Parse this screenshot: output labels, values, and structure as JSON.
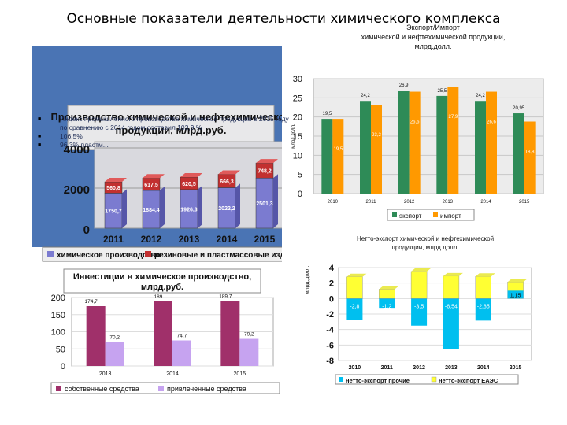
{
  "page_title": "Основные показатели деятельности  химического комплекса",
  "bullets": [
    {
      "text": "Индекс промышленного производства химической продукции в 2015 году по сравнению с 2014 годом    составил 103,9 %"
    },
    {
      "text": "106,5%"
    },
    {
      "text": "96,3% пластм..."
    }
  ],
  "colors": {
    "panel_blue": "#4a74b4",
    "green": "#2e8b57",
    "orange": "#ff9900",
    "cyan": "#00bfef",
    "yellow": "#ffff33",
    "maroon": "#a0306a",
    "lavender": "#c6a3f0",
    "purple_bar": "#7b7bd0",
    "red_bar": "#c23030"
  },
  "chart_data": [
    {
      "id": "production",
      "type": "bar",
      "title": "Производство химической и нефтехимической продукции, млрд.руб.",
      "categories": [
        "2011",
        "2012",
        "2013",
        "2014",
        "2015"
      ],
      "series": [
        {
          "name": "химическое производство",
          "values": [
            1750.7,
            1884.4,
            1926.3,
            2022.2,
            2501.3
          ]
        },
        {
          "name": "резиновые и пластмассовые изделия",
          "values": [
            560.8,
            617.5,
            620.5,
            666.3,
            748.2
          ]
        }
      ],
      "y_ticks": [
        "0",
        "2000",
        "4000"
      ],
      "ylim": [
        0,
        4000
      ],
      "stacked": true
    },
    {
      "id": "export_import",
      "type": "bar",
      "title": "Экспорт/Импорт химической и нефтехимической продукции, млрд.долл.",
      "ylabel": "млрд.долл.",
      "categories": [
        "2010",
        "2011",
        "2012",
        "2013",
        "2014",
        "2015"
      ],
      "series": [
        {
          "name": "экспорт",
          "values": [
            19.5,
            24.2,
            26.9,
            25.5,
            24.2,
            20.95
          ]
        },
        {
          "name": "импорт",
          "values": [
            19.5,
            23.2,
            26.6,
            27.9,
            26.6,
            18.8
          ]
        }
      ],
      "export_labels": [
        "19,5",
        "24,2",
        "26,9",
        "25,5",
        "24,2",
        "20,95"
      ],
      "import_labels": [
        "19,5",
        "23,2",
        "26,6",
        "27,9",
        "26,6",
        "18,8"
      ],
      "y_ticks": [
        "0",
        "5",
        "10",
        "15",
        "20",
        "25",
        "30"
      ],
      "ylim": [
        0,
        30
      ]
    },
    {
      "id": "net_export",
      "type": "bar",
      "title": "Нетто-экспорт химической и нефтехимической продукции, млрд.долл.",
      "ylabel": "млрд.долл.",
      "categories": [
        "2010",
        "2011",
        "2012",
        "2013",
        "2014",
        "2015"
      ],
      "series": [
        {
          "name": "нетто-экспорт прочие",
          "values": [
            -2.8,
            -1.2,
            -3.5,
            -6.54,
            -2.85,
            0
          ]
        },
        {
          "name": "нетто-экспорт ЕАЭС",
          "values": [
            2.8,
            1.2,
            3.5,
            2.9,
            2.85,
            2.15
          ]
        }
      ],
      "labels_other": [
        "-2,8",
        "-1,2",
        "-3,5",
        "-6,54",
        "-2,85",
        ""
      ],
      "label_2015": "1,15",
      "y_ticks": [
        "-8",
        "-6",
        "-4",
        "-2",
        "0",
        "2",
        "4"
      ],
      "ylim": [
        -8,
        4
      ]
    },
    {
      "id": "investments",
      "type": "bar",
      "title": "Инвестиции в химическое производство, млрд.руб.",
      "categories": [
        "2013",
        "2014",
        "2015"
      ],
      "series": [
        {
          "name": "собственные средства",
          "values": [
            174.7,
            189,
            189.7
          ]
        },
        {
          "name": "привлеченные средства",
          "values": [
            70.2,
            74.7,
            79.2
          ]
        }
      ],
      "labels_own": [
        "174,7",
        "189",
        "189,7"
      ],
      "labels_borrowed": [
        "70,2",
        "74,7",
        "79,2"
      ],
      "y_ticks": [
        "0",
        "50",
        "100",
        "150",
        "200"
      ],
      "ylim": [
        0,
        200
      ]
    }
  ]
}
